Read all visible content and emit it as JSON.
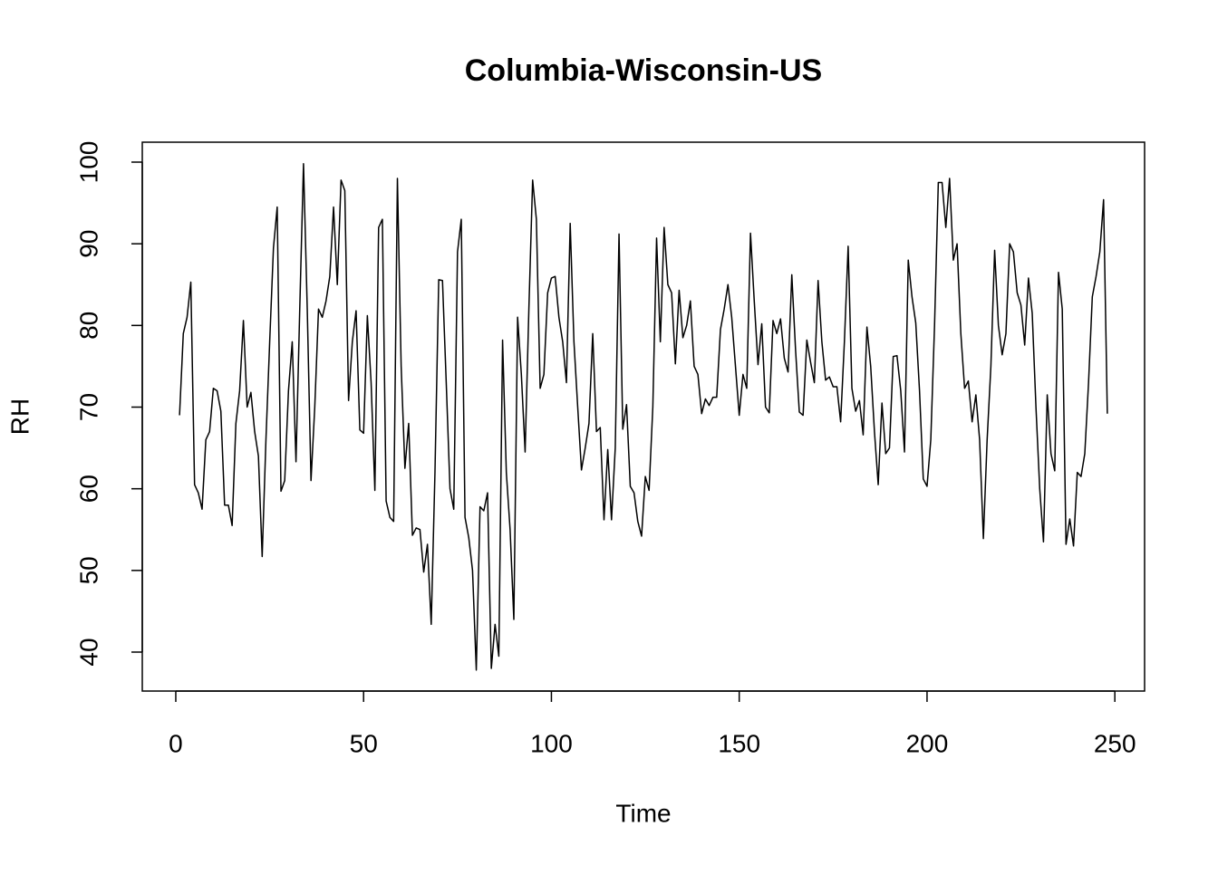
{
  "chart_data": {
    "type": "line",
    "title": "Columbia-Wisconsin-US",
    "x_label": "Time",
    "y_label": "RH",
    "xlim": [
      -8.92,
      257.92
    ],
    "ylim": [
      35.23,
      102.44
    ],
    "xticks": [
      0,
      50,
      100,
      150,
      200,
      250
    ],
    "yticks": [
      40,
      50,
      60,
      70,
      80,
      90,
      100
    ],
    "grid": false,
    "color": "#000000",
    "x": [
      1,
      2,
      3,
      4,
      5,
      6,
      7,
      8,
      9,
      10,
      11,
      12,
      13,
      14,
      15,
      16,
      17,
      18,
      19,
      20,
      21,
      22,
      23,
      24,
      25,
      26,
      27,
      28,
      29,
      30,
      31,
      32,
      33,
      34,
      35,
      36,
      37,
      38,
      39,
      40,
      41,
      42,
      43,
      44,
      45,
      46,
      47,
      48,
      49,
      50,
      51,
      52,
      53,
      54,
      55,
      56,
      57,
      58,
      59,
      60,
      61,
      62,
      63,
      64,
      65,
      66,
      67,
      68,
      69,
      70,
      71,
      72,
      73,
      74,
      75,
      76,
      77,
      78,
      79,
      80,
      81,
      82,
      83,
      84,
      85,
      86,
      87,
      88,
      89,
      90,
      91,
      92,
      93,
      94,
      95,
      96,
      97,
      98,
      99,
      100,
      101,
      102,
      103,
      104,
      105,
      106,
      107,
      108,
      109,
      110,
      111,
      112,
      113,
      114,
      115,
      116,
      117,
      118,
      119,
      120,
      121,
      122,
      123,
      124,
      125,
      126,
      127,
      128,
      129,
      130,
      131,
      132,
      133,
      134,
      135,
      136,
      137,
      138,
      139,
      140,
      141,
      142,
      143,
      144,
      145,
      146,
      147,
      148,
      149,
      150,
      151,
      152,
      153,
      154,
      155,
      156,
      157,
      158,
      159,
      160,
      161,
      162,
      163,
      164,
      165,
      166,
      167,
      168,
      169,
      170,
      171,
      172,
      173,
      174,
      175,
      176,
      177,
      178,
      179,
      180,
      181,
      182,
      183,
      184,
      185,
      186,
      187,
      188,
      189,
      190,
      191,
      192,
      193,
      194,
      195,
      196,
      197,
      198,
      199,
      200,
      201,
      202,
      203,
      204,
      205,
      206,
      207,
      208,
      209,
      210,
      211,
      212,
      213,
      214,
      215,
      216,
      217,
      218,
      219,
      220,
      221,
      222,
      223,
      224,
      225,
      226,
      227,
      228,
      229,
      230,
      231,
      232,
      233,
      234,
      235,
      236,
      237,
      238,
      239,
      240,
      241,
      242,
      243,
      244,
      245,
      246,
      247,
      248
    ],
    "values": [
      69,
      79,
      81,
      85.3,
      60.5,
      59.5,
      57.5,
      66,
      67,
      72.3,
      72,
      69.5,
      58,
      58,
      55.5,
      68,
      72,
      80.6,
      70,
      71.8,
      67,
      64,
      51.7,
      66,
      78,
      89.5,
      94.5,
      59.7,
      61,
      72,
      78,
      63.3,
      82,
      99.8,
      82,
      61,
      70,
      82,
      81,
      83,
      86,
      94.5,
      85,
      97.8,
      96.5,
      70.8,
      78,
      81.8,
      67.2,
      66.8,
      81.2,
      73,
      59.8,
      92,
      93,
      58.5,
      56.5,
      56,
      98,
      75,
      62.5,
      68,
      54.3,
      55.2,
      55,
      49.8,
      53.2,
      43.4,
      62,
      85.6,
      85.5,
      73,
      60,
      57.5,
      89,
      93,
      56.5,
      54,
      50,
      37.8,
      57.8,
      57.3,
      59.5,
      38,
      43.4,
      39.5,
      78.2,
      62,
      55,
      44,
      81,
      74,
      64.5,
      82,
      97.8,
      93,
      72.3,
      74,
      84,
      85.8,
      86,
      81,
      78,
      73,
      92.5,
      78,
      70,
      62.3,
      65,
      68,
      79,
      67,
      67.5,
      56.2,
      64.8,
      56.2,
      65,
      91.2,
      67.3,
      70.3,
      60.3,
      59.5,
      56,
      54.2,
      61.5,
      59.8,
      70,
      90.7,
      78,
      92,
      85,
      84,
      75.3,
      84.3,
      78.5,
      80,
      83,
      75,
      74,
      69.2,
      71,
      70.2,
      71.2,
      71.2,
      79.5,
      82,
      85,
      81,
      75,
      69,
      74,
      72.3,
      91.3,
      83,
      75.2,
      80.2,
      70,
      69.3,
      80.6,
      79,
      80.8,
      76,
      74.3,
      86.2,
      77,
      69.4,
      69,
      78.2,
      75.5,
      73,
      85.5,
      78,
      73.3,
      73.7,
      72.5,
      72.5,
      68.2,
      78,
      89.7,
      72.3,
      69.5,
      70.8,
      66.6,
      79.8,
      75,
      67,
      60.5,
      70.5,
      64.3,
      65,
      76.2,
      76.3,
      72,
      64.5,
      88,
      83.5,
      80.3,
      72,
      61.2,
      60.3,
      66,
      80,
      97.5,
      97.5,
      92,
      98,
      88,
      90,
      79,
      72.3,
      73.2,
      68.2,
      71.5,
      66,
      53.9,
      66,
      75,
      89.2,
      80,
      76.4,
      79,
      90,
      89,
      84,
      82.5,
      77.6,
      85.8,
      81.5,
      70,
      60,
      53.5,
      71.5,
      64.3,
      62.2,
      86.5,
      82,
      53.2,
      56.3,
      53,
      62,
      61.5,
      64.3,
      73,
      83.5,
      86,
      89,
      95.4,
      69.2
    ]
  }
}
